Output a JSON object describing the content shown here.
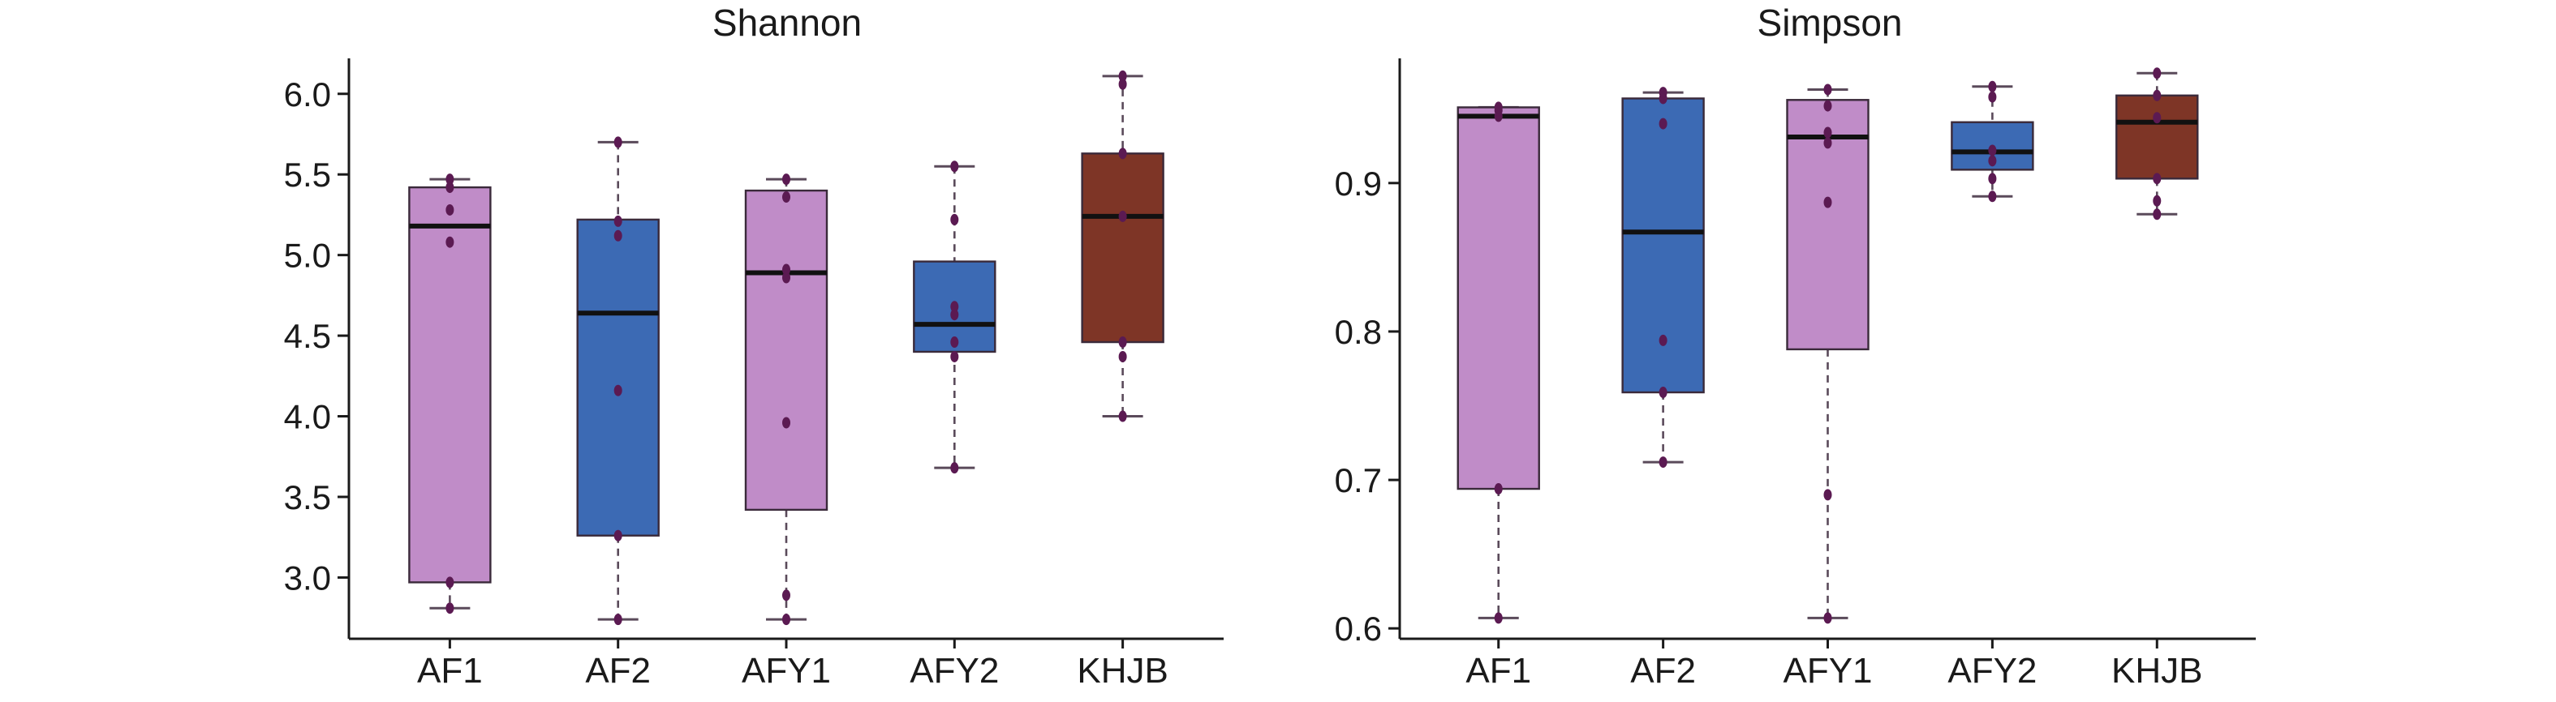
{
  "chart_data": [
    {
      "type": "box",
      "title": "Shannon",
      "xlabel": "",
      "ylabel": "",
      "categories": [
        "AF1",
        "AF2",
        "AFY1",
        "AFY2",
        "KHJB"
      ],
      "ylim": [
        2.62,
        6.22
      ],
      "yticks": [
        "3.0",
        "3.5",
        "4.0",
        "4.5",
        "5.0",
        "5.5",
        "6.0"
      ],
      "box_colors": [
        "#c08cc8",
        "#3c6ab4",
        "#c08cc8",
        "#3c6ab4",
        "#7e3526"
      ],
      "boxes": [
        {
          "whisker_low": 2.81,
          "q1": 2.97,
          "median": 5.18,
          "q3": 5.42,
          "whisker_high": 5.47,
          "points": [
            2.81,
            2.97,
            5.08,
            5.28,
            5.42,
            5.47
          ]
        },
        {
          "whisker_low": 2.74,
          "q1": 3.26,
          "median": 4.64,
          "q3": 5.22,
          "whisker_high": 5.7,
          "points": [
            2.74,
            3.26,
            4.16,
            5.12,
            5.21,
            5.7
          ]
        },
        {
          "whisker_low": 2.74,
          "q1": 3.42,
          "median": 4.89,
          "q3": 5.4,
          "whisker_high": 5.47,
          "points": [
            2.74,
            2.89,
            3.96,
            4.86,
            4.91,
            5.36,
            5.47
          ]
        },
        {
          "whisker_low": 3.68,
          "q1": 4.4,
          "median": 4.57,
          "q3": 4.96,
          "whisker_high": 5.55,
          "points": [
            3.68,
            4.37,
            4.46,
            4.63,
            4.68,
            5.22,
            5.55
          ]
        },
        {
          "whisker_low": 4.0,
          "q1": 4.46,
          "median": 5.24,
          "q3": 5.63,
          "whisker_high": 6.11,
          "points": [
            4.0,
            4.37,
            4.46,
            5.24,
            5.63,
            6.06,
            6.11
          ]
        }
      ]
    },
    {
      "type": "box",
      "title": "Simpson",
      "xlabel": "",
      "ylabel": "",
      "categories": [
        "AF1",
        "AF2",
        "AFY1",
        "AFY2",
        "KHJB"
      ],
      "ylim": [
        0.593,
        0.984
      ],
      "yticks": [
        "0.6",
        "0.7",
        "0.8",
        "0.9"
      ],
      "box_colors": [
        "#c08cc8",
        "#3c6ab4",
        "#c08cc8",
        "#3c6ab4",
        "#7e3526"
      ],
      "boxes": [
        {
          "whisker_low": 0.607,
          "q1": 0.694,
          "median": 0.945,
          "q3": 0.951,
          "whisker_high": 0.951,
          "points": [
            0.607,
            0.694,
            0.945,
            0.949,
            0.951
          ]
        },
        {
          "whisker_low": 0.712,
          "q1": 0.759,
          "median": 0.867,
          "q3": 0.957,
          "whisker_high": 0.961,
          "points": [
            0.712,
            0.759,
            0.794,
            0.94,
            0.957,
            0.961
          ]
        },
        {
          "whisker_low": 0.607,
          "q1": 0.788,
          "median": 0.931,
          "q3": 0.956,
          "whisker_high": 0.963,
          "points": [
            0.607,
            0.69,
            0.887,
            0.927,
            0.934,
            0.952,
            0.963
          ]
        },
        {
          "whisker_low": 0.891,
          "q1": 0.909,
          "median": 0.921,
          "q3": 0.941,
          "whisker_high": 0.965,
          "points": [
            0.891,
            0.903,
            0.915,
            0.922,
            0.958,
            0.965
          ]
        },
        {
          "whisker_low": 0.879,
          "q1": 0.903,
          "median": 0.941,
          "q3": 0.959,
          "whisker_high": 0.974,
          "points": [
            0.879,
            0.888,
            0.903,
            0.944,
            0.959,
            0.974
          ]
        }
      ]
    }
  ]
}
